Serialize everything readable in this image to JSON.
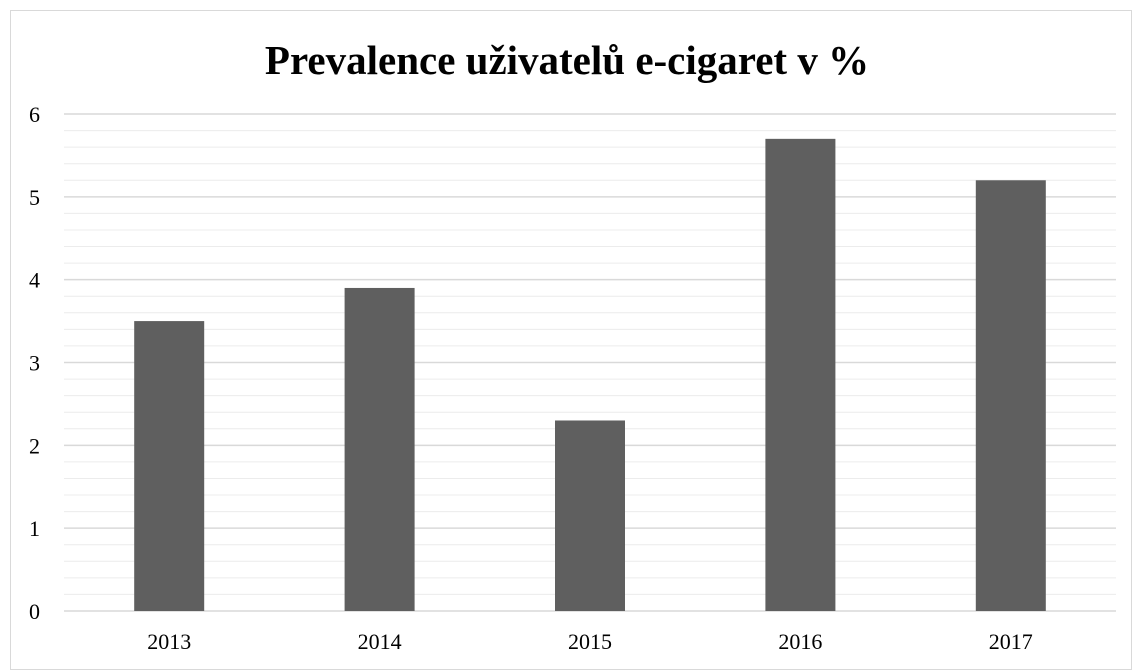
{
  "chart_data": {
    "type": "bar",
    "title": "Prevalence uživatelů e-cigaret v %",
    "xlabel": "",
    "ylabel": "",
    "categories": [
      "2013",
      "2014",
      "2015",
      "2016",
      "2017"
    ],
    "values": [
      3.5,
      3.9,
      2.3,
      5.7,
      5.2
    ],
    "ylim": [
      0,
      6
    ],
    "y_ticks": [
      "0",
      "1",
      "2",
      "3",
      "4",
      "5",
      "6"
    ],
    "major_step": 1,
    "minor_step": 0.2,
    "grid": true,
    "legend": "none",
    "bar_color": "#5f5f5f",
    "major_grid_color": "#d9d9d9",
    "minor_grid_color": "#ececec"
  }
}
